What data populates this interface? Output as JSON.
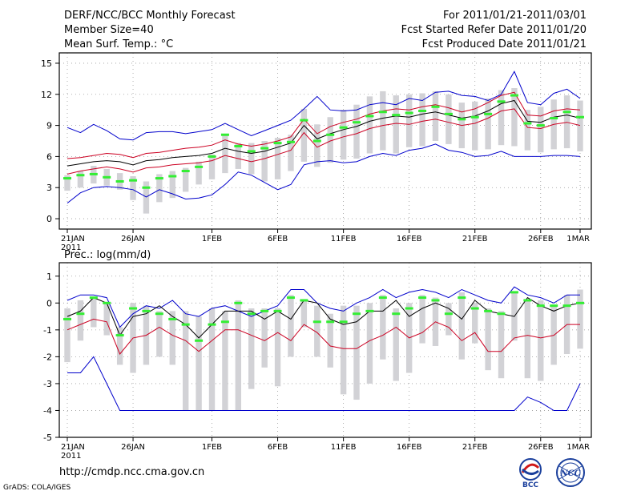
{
  "header": {
    "title": "DERF/NCC/BCC Monthly Forecast",
    "member_size": "Member Size=40",
    "variable": "Mean Surf. Temp.: °C",
    "period": "For 2011/01/21-2011/03/01",
    "started": "Fcst Started Refer Date 2011/01/20",
    "produced": "Fcst Produced Date 2011/01/21"
  },
  "footer": {
    "url": "http://cmdp.ncc.cma.gov.cn",
    "credit": "GrADS: COLA/IGES",
    "logo_left_text": "BCC",
    "logo_right_text": "NCC"
  },
  "colors": {
    "envelope": "#0000cc",
    "spread": "#cc0022",
    "mean": "#000000",
    "box": "#d2d2d6",
    "median": "#33ee33",
    "grid": "#999999"
  },
  "chart_data": [
    {
      "type": "line",
      "name": "temperature",
      "title": "Mean Surf. Temp.: °C",
      "ylim": [
        -1,
        16
      ],
      "yticks": [
        0,
        3,
        6,
        9,
        12,
        15
      ],
      "xlim": [
        0,
        39
      ],
      "xticks": [
        {
          "pos": 0,
          "label": "21JAN",
          "sub": "2011"
        },
        {
          "pos": 5,
          "label": "26JAN"
        },
        {
          "pos": 11,
          "label": "1FEB"
        },
        {
          "pos": 16,
          "label": "6FEB"
        },
        {
          "pos": 21,
          "label": "11FEB"
        },
        {
          "pos": 26,
          "label": "16FEB"
        },
        {
          "pos": 31,
          "label": "21FEB"
        },
        {
          "pos": 36,
          "label": "26FEB"
        },
        {
          "pos": 39,
          "label": "1MAR"
        }
      ],
      "grid": true,
      "series": [
        {
          "name": "max",
          "role": "envelope",
          "values": [
            8.8,
            8.3,
            9.1,
            8.5,
            7.7,
            7.6,
            8.3,
            8.4,
            8.4,
            8.2,
            8.4,
            8.6,
            9.2,
            8.6,
            8.0,
            8.5,
            9.0,
            9.5,
            10.6,
            11.8,
            10.5,
            10.4,
            10.5,
            11.0,
            11.2,
            11.0,
            11.6,
            11.4,
            12.2,
            12.3,
            11.9,
            11.8,
            11.4,
            12.0,
            14.2,
            11.2,
            11.0,
            12.1,
            12.5,
            11.6
          ]
        },
        {
          "name": "upper",
          "role": "spread",
          "values": [
            5.8,
            5.9,
            6.1,
            6.3,
            6.2,
            5.9,
            6.3,
            6.4,
            6.6,
            6.8,
            6.9,
            7.1,
            7.6,
            7.2,
            7.0,
            7.2,
            7.5,
            7.9,
            9.6,
            8.2,
            8.9,
            9.3,
            9.6,
            10.1,
            10.4,
            10.6,
            10.5,
            10.8,
            11.0,
            10.7,
            10.3,
            10.6,
            11.2,
            11.9,
            12.2,
            10.0,
            9.9,
            10.4,
            10.6,
            10.5
          ]
        },
        {
          "name": "mean",
          "role": "mean",
          "values": [
            5.1,
            5.3,
            5.5,
            5.6,
            5.5,
            5.2,
            5.6,
            5.7,
            5.9,
            6.0,
            6.1,
            6.3,
            6.8,
            6.5,
            6.3,
            6.5,
            6.9,
            7.3,
            9.0,
            7.7,
            8.2,
            8.6,
            8.9,
            9.4,
            9.7,
            9.9,
            9.8,
            10.1,
            10.3,
            10.0,
            9.7,
            9.9,
            10.4,
            11.1,
            11.4,
            9.4,
            9.3,
            9.8,
            10.0,
            9.7
          ]
        },
        {
          "name": "lower",
          "role": "spread",
          "values": [
            4.3,
            4.6,
            4.8,
            5.0,
            4.8,
            4.5,
            4.9,
            5.0,
            5.2,
            5.3,
            5.4,
            5.6,
            6.1,
            5.8,
            5.5,
            5.8,
            6.2,
            6.6,
            8.3,
            6.9,
            7.5,
            7.9,
            8.2,
            8.7,
            9.0,
            9.2,
            9.1,
            9.4,
            9.6,
            9.3,
            9.0,
            9.2,
            9.7,
            10.4,
            10.6,
            8.8,
            8.7,
            9.1,
            9.3,
            9.0
          ]
        },
        {
          "name": "min",
          "role": "envelope",
          "values": [
            1.5,
            2.5,
            3.0,
            3.1,
            3.0,
            2.8,
            2.1,
            2.8,
            2.4,
            1.9,
            2.0,
            2.3,
            3.3,
            4.5,
            4.2,
            3.5,
            2.8,
            3.3,
            5.2,
            5.5,
            5.6,
            5.4,
            5.5,
            6.0,
            6.3,
            6.1,
            6.6,
            6.8,
            7.2,
            6.6,
            6.4,
            6.0,
            6.1,
            6.5,
            6.0,
            6.0,
            6.0,
            6.1,
            6.1,
            6.0
          ]
        }
      ],
      "boxes": {
        "low": [
          2.7,
          3.0,
          3.4,
          3.2,
          2.8,
          1.8,
          0.5,
          1.6,
          2.0,
          2.6,
          3.3,
          3.8,
          4.4,
          4.8,
          4.3,
          3.6,
          3.8,
          4.6,
          5.5,
          5.0,
          5.4,
          5.7,
          5.8,
          6.3,
          6.6,
          6.3,
          6.9,
          7.0,
          7.5,
          7.2,
          6.8,
          6.6,
          6.7,
          7.1,
          7.0,
          6.6,
          6.4,
          6.7,
          6.8,
          6.5
        ],
        "high": [
          4.2,
          4.6,
          5.1,
          4.8,
          4.4,
          4.1,
          3.6,
          4.3,
          4.6,
          4.9,
          5.5,
          6.2,
          8.1,
          7.3,
          7.3,
          7.5,
          7.8,
          8.1,
          10.6,
          9.1,
          9.8,
          10.5,
          11.0,
          11.8,
          12.3,
          11.9,
          12.0,
          12.1,
          12.3,
          12.0,
          11.2,
          11.3,
          11.6,
          12.4,
          12.6,
          10.5,
          10.8,
          11.5,
          11.9,
          11.4
        ],
        "median": [
          3.9,
          4.2,
          4.3,
          4.0,
          3.6,
          3.7,
          3.0,
          3.9,
          4.1,
          4.6,
          5.0,
          6.0,
          8.1,
          7.0,
          6.5,
          6.8,
          7.3,
          7.4,
          9.5,
          7.5,
          8.1,
          8.8,
          9.3,
          9.9,
          10.3,
          10.0,
          10.2,
          10.4,
          10.8,
          10.1,
          9.6,
          9.8,
          10.1,
          11.3,
          11.9,
          9.2,
          9.0,
          9.7,
          10.3,
          9.8
        ]
      }
    },
    {
      "type": "line",
      "name": "precipitation",
      "title": "Prec.: log(mm/d)",
      "ylim": [
        -5,
        1.5
      ],
      "yticks": [
        -5,
        -4,
        -3,
        -2,
        -1,
        0,
        1
      ],
      "xlim": [
        0,
        39
      ],
      "xticks": [
        {
          "pos": 0,
          "label": "21JAN",
          "sub": "2011"
        },
        {
          "pos": 5,
          "label": "26JAN"
        },
        {
          "pos": 11,
          "label": "1FEB"
        },
        {
          "pos": 16,
          "label": "6FEB"
        },
        {
          "pos": 21,
          "label": "11FEB"
        },
        {
          "pos": 26,
          "label": "16FEB"
        },
        {
          "pos": 31,
          "label": "21FEB"
        },
        {
          "pos": 36,
          "label": "26FEB"
        },
        {
          "pos": 39,
          "label": "1MAR"
        }
      ],
      "grid": true,
      "series": [
        {
          "name": "max",
          "role": "envelope",
          "values": [
            0.1,
            0.3,
            0.3,
            0.2,
            -0.9,
            -0.4,
            -0.1,
            -0.2,
            0.1,
            -0.4,
            -0.5,
            -0.2,
            -0.1,
            -0.3,
            -0.5,
            -0.3,
            -0.1,
            0.5,
            0.5,
            0.0,
            -0.2,
            -0.3,
            0.0,
            0.2,
            0.5,
            0.2,
            0.4,
            0.5,
            0.4,
            0.2,
            0.5,
            0.3,
            0.1,
            0.0,
            0.6,
            0.3,
            0.2,
            0.0,
            0.3,
            0.3
          ]
        },
        {
          "name": "mean",
          "role": "mean",
          "values": [
            -0.5,
            -0.3,
            0.2,
            0.0,
            -1.2,
            -0.5,
            -0.4,
            -0.1,
            -0.5,
            -0.8,
            -1.3,
            -0.8,
            -0.3,
            -0.3,
            -0.3,
            -0.6,
            -0.3,
            -0.6,
            0.1,
            0.0,
            -0.6,
            -0.8,
            -0.7,
            -0.3,
            -0.3,
            0.1,
            -0.5,
            -0.2,
            0.0,
            -0.2,
            -0.6,
            0.1,
            -0.3,
            -0.4,
            -0.5,
            0.2,
            -0.1,
            -0.3,
            -0.1,
            0.0
          ]
        },
        {
          "name": "lower",
          "role": "spread",
          "values": [
            -1.0,
            -0.8,
            -0.6,
            -0.7,
            -1.9,
            -1.3,
            -1.2,
            -0.9,
            -1.2,
            -1.4,
            -1.8,
            -1.4,
            -1.0,
            -1.0,
            -1.2,
            -1.4,
            -1.1,
            -1.4,
            -0.8,
            -1.1,
            -1.6,
            -1.7,
            -1.7,
            -1.4,
            -1.2,
            -0.9,
            -1.3,
            -1.1,
            -0.7,
            -0.9,
            -1.4,
            -1.1,
            -1.8,
            -1.8,
            -1.3,
            -1.2,
            -1.3,
            -1.2,
            -0.8,
            -0.8
          ]
        },
        {
          "name": "min",
          "role": "envelope",
          "values": [
            -2.6,
            -2.6,
            -2.0,
            -3.0,
            -4.0,
            -4.0,
            -4.0,
            -4.0,
            -4.0,
            -4.0,
            -4.0,
            -4.0,
            -4.0,
            -4.0,
            -4.0,
            -4.0,
            -4.0,
            -4.0,
            -4.0,
            -4.0,
            -4.0,
            -4.0,
            -4.0,
            -4.0,
            -4.0,
            -4.0,
            -4.0,
            -4.0,
            -4.0,
            -4.0,
            -4.0,
            -4.0,
            -4.0,
            -4.0,
            -4.0,
            -3.5,
            -3.7,
            -4.0,
            -4.0,
            -3.0
          ]
        }
      ],
      "boxes": {
        "low": [
          -2.2,
          -1.4,
          -0.9,
          -1.2,
          -2.3,
          -2.6,
          -2.3,
          -2.0,
          -2.3,
          -4.0,
          -4.0,
          -4.0,
          -4.0,
          -4.0,
          -3.2,
          -2.4,
          -3.1,
          -2.0,
          -0.9,
          -2.0,
          -2.4,
          -3.4,
          -3.6,
          -3.0,
          -2.1,
          -2.9,
          -2.6,
          -1.5,
          -1.6,
          -1.2,
          -2.1,
          -1.5,
          -2.5,
          -2.8,
          -1.4,
          -2.8,
          -2.9,
          -2.3,
          -1.9,
          -1.7
        ],
        "high": [
          -0.2,
          0.1,
          0.2,
          0.0,
          -0.9,
          0.0,
          -0.1,
          -0.3,
          -0.3,
          -0.3,
          -0.5,
          -0.2,
          -0.3,
          0.1,
          -0.2,
          -0.2,
          -0.2,
          0.3,
          0.1,
          -0.1,
          -0.4,
          -0.1,
          -0.1,
          0.0,
          0.3,
          -0.2,
          0.0,
          0.3,
          0.2,
          0.0,
          0.4,
          0.0,
          -0.2,
          -0.3,
          0.4,
          0.1,
          0.1,
          -0.1,
          0.3,
          0.5
        ],
        "median": [
          -0.6,
          -0.4,
          0.2,
          0.0,
          -1.2,
          -0.2,
          -0.3,
          -0.4,
          -0.6,
          -0.8,
          -1.4,
          -0.8,
          -0.7,
          0.0,
          -0.4,
          -0.3,
          -0.3,
          0.2,
          0.1,
          -0.7,
          -0.7,
          -0.7,
          -0.4,
          -0.3,
          0.2,
          -0.4,
          -0.2,
          0.2,
          0.1,
          -0.4,
          0.2,
          -0.2,
          -0.3,
          -0.4,
          0.4,
          0.1,
          -0.1,
          -0.1,
          -0.1,
          0.0
        ]
      }
    }
  ]
}
